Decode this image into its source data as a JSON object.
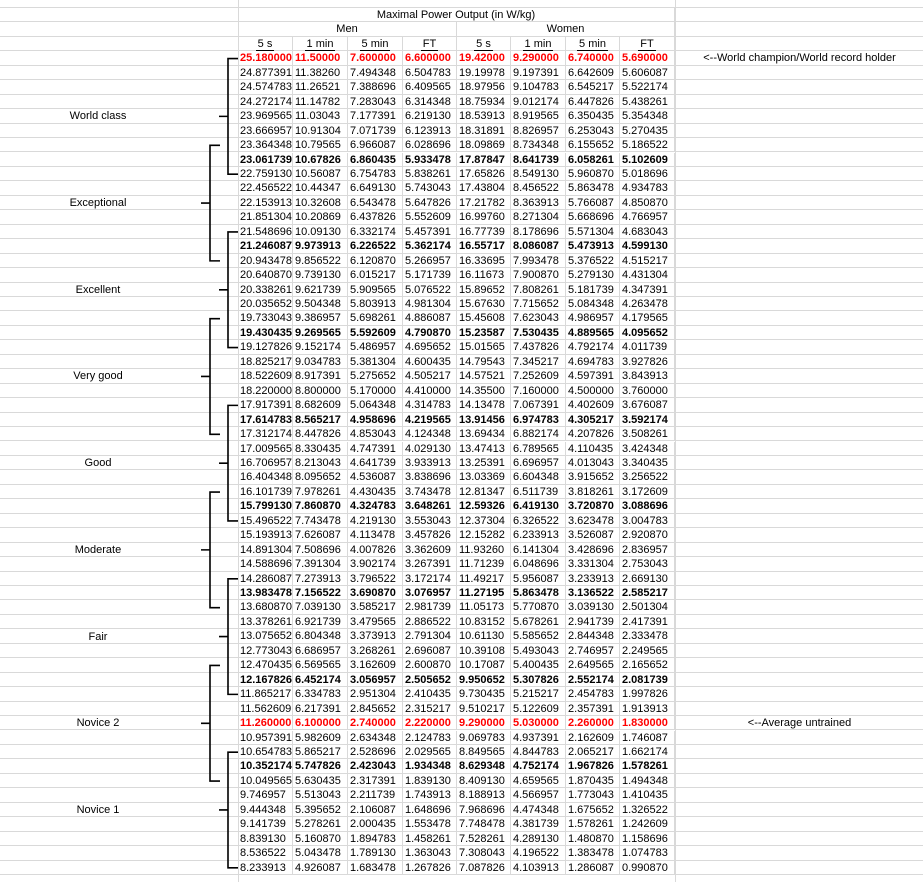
{
  "header": {
    "title": "Maximal Power Output (in W/kg)",
    "groups": [
      "Men",
      "Women"
    ],
    "columns": [
      "5 s",
      "1 min",
      "5 min",
      "FT",
      "5 s",
      "1 min",
      "5 min",
      "FT"
    ]
  },
  "colors": {
    "highlight": "#ff0000",
    "grid": "#d9d9d9"
  },
  "categories": [
    {
      "label": "World class",
      "first_row": 1,
      "last_row": 9
    },
    {
      "label": "Exceptional",
      "first_row": 7,
      "last_row": 15
    },
    {
      "label": "Excellent",
      "first_row": 13,
      "last_row": 21
    },
    {
      "label": "Very good",
      "first_row": 19,
      "last_row": 27
    },
    {
      "label": "Good",
      "first_row": 25,
      "last_row": 33
    },
    {
      "label": "Moderate",
      "first_row": 31,
      "last_row": 39
    },
    {
      "label": "Fair",
      "first_row": 37,
      "last_row": 45
    },
    {
      "label": "Novice 2",
      "first_row": 43,
      "last_row": 51
    },
    {
      "label": "Novice 1",
      "first_row": 49,
      "last_row": 57
    }
  ],
  "notes": [
    {
      "row": 1,
      "text": "<--World champion/World record holder"
    },
    {
      "row": 47,
      "text": "<--Average untrained"
    }
  ],
  "rows": [
    {
      "style": "red",
      "values": [
        "25.180000",
        "11.50000",
        "7.600000",
        "6.600000",
        "19.42000",
        "9.290000",
        "6.740000",
        "5.690000"
      ]
    },
    {
      "style": "normal",
      "values": [
        "24.877391",
        "11.38260",
        "7.494348",
        "6.504783",
        "19.19978",
        "9.197391",
        "6.642609",
        "5.606087"
      ]
    },
    {
      "style": "normal",
      "values": [
        "24.574783",
        "11.26521",
        "7.388696",
        "6.409565",
        "18.97956",
        "9.104783",
        "6.545217",
        "5.522174"
      ]
    },
    {
      "style": "normal",
      "values": [
        "24.272174",
        "11.14782",
        "7.283043",
        "6.314348",
        "18.75934",
        "9.012174",
        "6.447826",
        "5.438261"
      ]
    },
    {
      "style": "normal",
      "values": [
        "23.969565",
        "11.03043",
        "7.177391",
        "6.219130",
        "18.53913",
        "8.919565",
        "6.350435",
        "5.354348"
      ]
    },
    {
      "style": "normal",
      "values": [
        "23.666957",
        "10.91304",
        "7.071739",
        "6.123913",
        "18.31891",
        "8.826957",
        "6.253043",
        "5.270435"
      ]
    },
    {
      "style": "normal",
      "values": [
        "23.364348",
        "10.79565",
        "6.966087",
        "6.028696",
        "18.09869",
        "8.734348",
        "6.155652",
        "5.186522"
      ]
    },
    {
      "style": "bold",
      "values": [
        "23.061739",
        "10.67826",
        "6.860435",
        "5.933478",
        "17.87847",
        "8.641739",
        "6.058261",
        "5.102609"
      ]
    },
    {
      "style": "normal",
      "values": [
        "22.759130",
        "10.56087",
        "6.754783",
        "5.838261",
        "17.65826",
        "8.549130",
        "5.960870",
        "5.018696"
      ]
    },
    {
      "style": "normal",
      "values": [
        "22.456522",
        "10.44347",
        "6.649130",
        "5.743043",
        "17.43804",
        "8.456522",
        "5.863478",
        "4.934783"
      ]
    },
    {
      "style": "normal",
      "values": [
        "22.153913",
        "10.32608",
        "6.543478",
        "5.647826",
        "17.21782",
        "8.363913",
        "5.766087",
        "4.850870"
      ]
    },
    {
      "style": "normal",
      "values": [
        "21.851304",
        "10.20869",
        "6.437826",
        "5.552609",
        "16.99760",
        "8.271304",
        "5.668696",
        "4.766957"
      ]
    },
    {
      "style": "normal",
      "values": [
        "21.548696",
        "10.09130",
        "6.332174",
        "5.457391",
        "16.77739",
        "8.178696",
        "5.571304",
        "4.683043"
      ]
    },
    {
      "style": "bold",
      "values": [
        "21.246087",
        "9.973913",
        "6.226522",
        "5.362174",
        "16.55717",
        "8.086087",
        "5.473913",
        "4.599130"
      ]
    },
    {
      "style": "normal",
      "values": [
        "20.943478",
        "9.856522",
        "6.120870",
        "5.266957",
        "16.33695",
        "7.993478",
        "5.376522",
        "4.515217"
      ]
    },
    {
      "style": "normal",
      "values": [
        "20.640870",
        "9.739130",
        "6.015217",
        "5.171739",
        "16.11673",
        "7.900870",
        "5.279130",
        "4.431304"
      ]
    },
    {
      "style": "normal",
      "values": [
        "20.338261",
        "9.621739",
        "5.909565",
        "5.076522",
        "15.89652",
        "7.808261",
        "5.181739",
        "4.347391"
      ]
    },
    {
      "style": "normal",
      "values": [
        "20.035652",
        "9.504348",
        "5.803913",
        "4.981304",
        "15.67630",
        "7.715652",
        "5.084348",
        "4.263478"
      ]
    },
    {
      "style": "normal",
      "values": [
        "19.733043",
        "9.386957",
        "5.698261",
        "4.886087",
        "15.45608",
        "7.623043",
        "4.986957",
        "4.179565"
      ]
    },
    {
      "style": "bold",
      "values": [
        "19.430435",
        "9.269565",
        "5.592609",
        "4.790870",
        "15.23587",
        "7.530435",
        "4.889565",
        "4.095652"
      ]
    },
    {
      "style": "normal",
      "values": [
        "19.127826",
        "9.152174",
        "5.486957",
        "4.695652",
        "15.01565",
        "7.437826",
        "4.792174",
        "4.011739"
      ]
    },
    {
      "style": "normal",
      "values": [
        "18.825217",
        "9.034783",
        "5.381304",
        "4.600435",
        "14.79543",
        "7.345217",
        "4.694783",
        "3.927826"
      ]
    },
    {
      "style": "normal",
      "values": [
        "18.522609",
        "8.917391",
        "5.275652",
        "4.505217",
        "14.57521",
        "7.252609",
        "4.597391",
        "3.843913"
      ]
    },
    {
      "style": "normal",
      "values": [
        "18.220000",
        "8.800000",
        "5.170000",
        "4.410000",
        "14.35500",
        "7.160000",
        "4.500000",
        "3.760000"
      ]
    },
    {
      "style": "normal",
      "values": [
        "17.917391",
        "8.682609",
        "5.064348",
        "4.314783",
        "14.13478",
        "7.067391",
        "4.402609",
        "3.676087"
      ]
    },
    {
      "style": "bold",
      "values": [
        "17.614783",
        "8.565217",
        "4.958696",
        "4.219565",
        "13.91456",
        "6.974783",
        "4.305217",
        "3.592174"
      ]
    },
    {
      "style": "normal",
      "values": [
        "17.312174",
        "8.447826",
        "4.853043",
        "4.124348",
        "13.69434",
        "6.882174",
        "4.207826",
        "3.508261"
      ]
    },
    {
      "style": "normal",
      "values": [
        "17.009565",
        "8.330435",
        "4.747391",
        "4.029130",
        "13.47413",
        "6.789565",
        "4.110435",
        "3.424348"
      ]
    },
    {
      "style": "normal",
      "values": [
        "16.706957",
        "8.213043",
        "4.641739",
        "3.933913",
        "13.25391",
        "6.696957",
        "4.013043",
        "3.340435"
      ]
    },
    {
      "style": "normal",
      "values": [
        "16.404348",
        "8.095652",
        "4.536087",
        "3.838696",
        "13.03369",
        "6.604348",
        "3.915652",
        "3.256522"
      ]
    },
    {
      "style": "normal",
      "values": [
        "16.101739",
        "7.978261",
        "4.430435",
        "3.743478",
        "12.81347",
        "6.511739",
        "3.818261",
        "3.172609"
      ]
    },
    {
      "style": "bold",
      "values": [
        "15.799130",
        "7.860870",
        "4.324783",
        "3.648261",
        "12.59326",
        "6.419130",
        "3.720870",
        "3.088696"
      ]
    },
    {
      "style": "normal",
      "values": [
        "15.496522",
        "7.743478",
        "4.219130",
        "3.553043",
        "12.37304",
        "6.326522",
        "3.623478",
        "3.004783"
      ]
    },
    {
      "style": "normal",
      "values": [
        "15.193913",
        "7.626087",
        "4.113478",
        "3.457826",
        "12.15282",
        "6.233913",
        "3.526087",
        "2.920870"
      ]
    },
    {
      "style": "normal",
      "values": [
        "14.891304",
        "7.508696",
        "4.007826",
        "3.362609",
        "11.93260",
        "6.141304",
        "3.428696",
        "2.836957"
      ]
    },
    {
      "style": "normal",
      "values": [
        "14.588696",
        "7.391304",
        "3.902174",
        "3.267391",
        "11.71239",
        "6.048696",
        "3.331304",
        "2.753043"
      ]
    },
    {
      "style": "normal",
      "values": [
        "14.286087",
        "7.273913",
        "3.796522",
        "3.172174",
        "11.49217",
        "5.956087",
        "3.233913",
        "2.669130"
      ]
    },
    {
      "style": "bold",
      "values": [
        "13.983478",
        "7.156522",
        "3.690870",
        "3.076957",
        "11.27195",
        "5.863478",
        "3.136522",
        "2.585217"
      ]
    },
    {
      "style": "normal",
      "values": [
        "13.680870",
        "7.039130",
        "3.585217",
        "2.981739",
        "11.05173",
        "5.770870",
        "3.039130",
        "2.501304"
      ]
    },
    {
      "style": "normal",
      "values": [
        "13.378261",
        "6.921739",
        "3.479565",
        "2.886522",
        "10.83152",
        "5.678261",
        "2.941739",
        "2.417391"
      ]
    },
    {
      "style": "normal",
      "values": [
        "13.075652",
        "6.804348",
        "3.373913",
        "2.791304",
        "10.61130",
        "5.585652",
        "2.844348",
        "2.333478"
      ]
    },
    {
      "style": "normal",
      "values": [
        "12.773043",
        "6.686957",
        "3.268261",
        "2.696087",
        "10.39108",
        "5.493043",
        "2.746957",
        "2.249565"
      ]
    },
    {
      "style": "normal",
      "values": [
        "12.470435",
        "6.569565",
        "3.162609",
        "2.600870",
        "10.17087",
        "5.400435",
        "2.649565",
        "2.165652"
      ]
    },
    {
      "style": "bold",
      "values": [
        "12.167826",
        "6.452174",
        "3.056957",
        "2.505652",
        "9.950652",
        "5.307826",
        "2.552174",
        "2.081739"
      ]
    },
    {
      "style": "normal",
      "values": [
        "11.865217",
        "6.334783",
        "2.951304",
        "2.410435",
        "9.730435",
        "5.215217",
        "2.454783",
        "1.997826"
      ]
    },
    {
      "style": "normal",
      "values": [
        "11.562609",
        "6.217391",
        "2.845652",
        "2.315217",
        "9.510217",
        "5.122609",
        "2.357391",
        "1.913913"
      ]
    },
    {
      "style": "red",
      "values": [
        "11.260000",
        "6.100000",
        "2.740000",
        "2.220000",
        "9.290000",
        "5.030000",
        "2.260000",
        "1.830000"
      ]
    },
    {
      "style": "normal",
      "values": [
        "10.957391",
        "5.982609",
        "2.634348",
        "2.124783",
        "9.069783",
        "4.937391",
        "2.162609",
        "1.746087"
      ]
    },
    {
      "style": "normal",
      "values": [
        "10.654783",
        "5.865217",
        "2.528696",
        "2.029565",
        "8.849565",
        "4.844783",
        "2.065217",
        "1.662174"
      ]
    },
    {
      "style": "bold",
      "values": [
        "10.352174",
        "5.747826",
        "2.423043",
        "1.934348",
        "8.629348",
        "4.752174",
        "1.967826",
        "1.578261"
      ]
    },
    {
      "style": "normal",
      "values": [
        "10.049565",
        "5.630435",
        "2.317391",
        "1.839130",
        "8.409130",
        "4.659565",
        "1.870435",
        "1.494348"
      ]
    },
    {
      "style": "normal",
      "values": [
        "9.746957",
        "5.513043",
        "2.211739",
        "1.743913",
        "8.188913",
        "4.566957",
        "1.773043",
        "1.410435"
      ]
    },
    {
      "style": "normal",
      "values": [
        "9.444348",
        "5.395652",
        "2.106087",
        "1.648696",
        "7.968696",
        "4.474348",
        "1.675652",
        "1.326522"
      ]
    },
    {
      "style": "normal",
      "values": [
        "9.141739",
        "5.278261",
        "2.000435",
        "1.553478",
        "7.748478",
        "4.381739",
        "1.578261",
        "1.242609"
      ]
    },
    {
      "style": "normal",
      "values": [
        "8.839130",
        "5.160870",
        "1.894783",
        "1.458261",
        "7.528261",
        "4.289130",
        "1.480870",
        "1.158696"
      ]
    },
    {
      "style": "normal",
      "values": [
        "8.536522",
        "5.043478",
        "1.789130",
        "1.363043",
        "7.308043",
        "4.196522",
        "1.383478",
        "1.074783"
      ]
    },
    {
      "style": "normal",
      "values": [
        "8.233913",
        "4.926087",
        "1.683478",
        "1.267826",
        "7.087826",
        "4.103913",
        "1.286087",
        "0.990870"
      ]
    }
  ]
}
